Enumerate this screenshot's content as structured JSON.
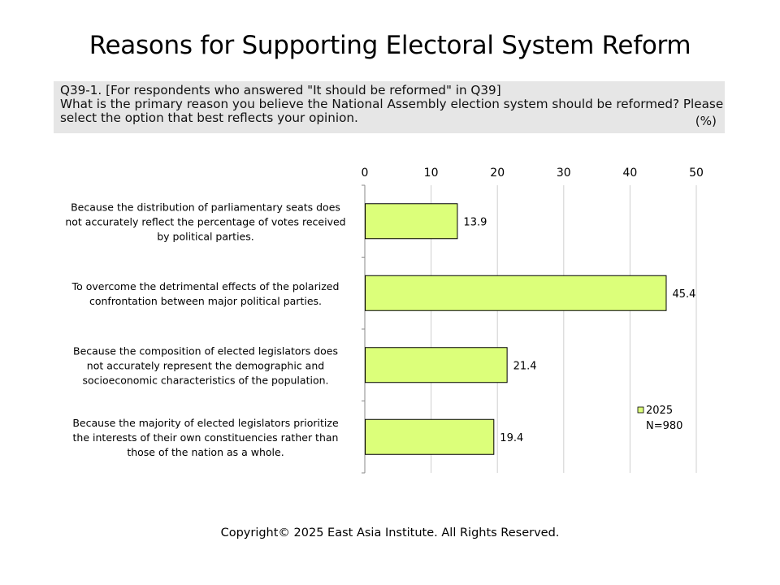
{
  "title": "Reasons for Supporting Electoral System Reform",
  "question": {
    "line1": "Q39-1. [For respondents who answered \"It should be reformed\" in Q39]",
    "line2": "What is the primary reason you believe the National Assembly election system should be reformed? Please",
    "line3": "select  the option that best reflects  your opinion.",
    "unit": "(%)"
  },
  "chart_data": {
    "type": "bar",
    "orientation": "horizontal",
    "categories": [
      [
        "Because the distribution of parliamentary seats does",
        "not accurately reflect the percentage of votes received",
        "by political parties."
      ],
      [
        "To overcome the detrimental effects of the polarized",
        "confrontation between major political parties."
      ],
      [
        "Because the composition of elected legislators does",
        "not accurately represent the demographic and",
        "socioeconomic characteristics of the population."
      ],
      [
        "Because the majority of elected legislators prioritize",
        "the interests of their own constituencies rather than",
        "those of the nation as a whole."
      ]
    ],
    "series": [
      {
        "name": "2025",
        "values": [
          13.9,
          45.4,
          21.4,
          19.4
        ]
      }
    ],
    "legend_note": "N=980",
    "xlim": [
      0,
      50
    ],
    "xticks": [
      0,
      10,
      20,
      30,
      40,
      50
    ],
    "grid": true,
    "legend_position": "right",
    "colors": {
      "bar": "#dcff7a",
      "bar_border": "#000000",
      "grid": "#cfcfcf"
    }
  },
  "copyright": "Copyright© 2025 East Asia Institute. All Rights Reserved."
}
